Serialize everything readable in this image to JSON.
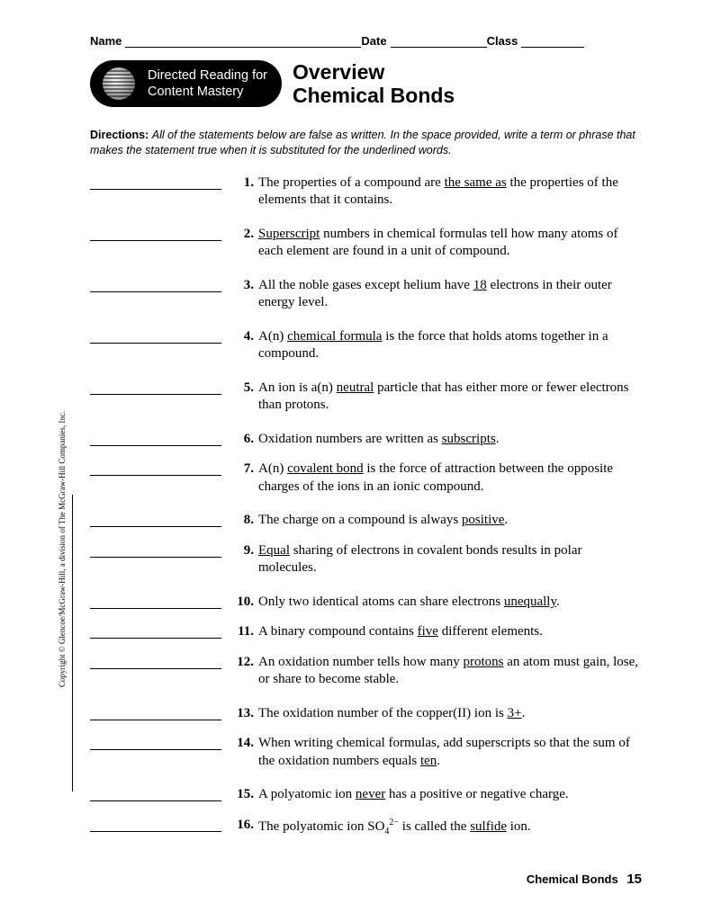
{
  "header": {
    "name_label": "Name",
    "date_label": "Date",
    "class_label": "Class",
    "name_width": 262,
    "date_width": 107,
    "class_width": 70
  },
  "badge": {
    "line1": "Directed Reading for",
    "line2": "Content Mastery"
  },
  "title": {
    "line1": "Overview",
    "line2": "Chemical Bonds"
  },
  "directions": {
    "lead": "Directions:",
    "body": "All of the statements below are false as written. In the space provided, write a term or phrase that makes the statement true when it is substituted for the underlined words."
  },
  "questions": [
    {
      "num": "1.",
      "parts": [
        "The properties of a compound are ",
        {
          "u": "the same as"
        },
        " the properties of the elements that it contains."
      ]
    },
    {
      "num": "2.",
      "parts": [
        {
          "u": "Superscript"
        },
        " numbers in chemical formulas tell how many atoms of each element are found in a unit of compound."
      ]
    },
    {
      "num": "3.",
      "parts": [
        "All the noble gases except helium have ",
        {
          "u": "18"
        },
        " electrons in their outer energy level."
      ]
    },
    {
      "num": "4.",
      "parts": [
        "A(n) ",
        {
          "u": "chemical formula"
        },
        " is the force that holds atoms together in a compound."
      ]
    },
    {
      "num": "5.",
      "parts": [
        "An ion is a(n) ",
        {
          "u": "neutral"
        },
        " particle that has either more or fewer electrons than protons."
      ]
    },
    {
      "num": "6.",
      "parts": [
        "Oxidation numbers are written as ",
        {
          "u": "subscripts"
        },
        "."
      ],
      "single": true
    },
    {
      "num": "7.",
      "parts": [
        "A(n) ",
        {
          "u": "covalent bond"
        },
        " is the force of attraction between the opposite charges of the ions in an ionic compound."
      ]
    },
    {
      "num": "8.",
      "parts": [
        "The charge on a compound is always ",
        {
          "u": "positive"
        },
        "."
      ],
      "single": true
    },
    {
      "num": "9.",
      "parts": [
        {
          "u": "Equal"
        },
        " sharing of electrons in covalent bonds results in polar molecules."
      ]
    },
    {
      "num": "10.",
      "parts": [
        "Only two identical atoms can share electrons ",
        {
          "u": "unequally"
        },
        "."
      ],
      "single": true
    },
    {
      "num": "11.",
      "parts": [
        "A binary compound contains ",
        {
          "u": "five"
        },
        " different elements."
      ],
      "single": true
    },
    {
      "num": "12.",
      "parts": [
        "An oxidation number tells how many ",
        {
          "u": "protons"
        },
        " an atom must gain, lose, or share to become stable."
      ]
    },
    {
      "num": "13.",
      "parts": [
        "The oxidation number of the copper(II) ion is ",
        {
          "u": "3+"
        },
        "."
      ],
      "single": true
    },
    {
      "num": "14.",
      "parts": [
        "When writing chemical formulas, add superscripts so that the sum of the oxidation numbers equals ",
        {
          "u": "ten"
        },
        "."
      ]
    },
    {
      "num": "15.",
      "parts": [
        "A polyatomic ion ",
        {
          "u": "never"
        },
        " has a positive or negative charge."
      ],
      "single": true
    },
    {
      "num": "16.",
      "parts": [
        "The polyatomic ion SO",
        {
          "sub": "4"
        },
        {
          "sup": "2−"
        },
        " is called the ",
        {
          "u": "sulfide"
        },
        " ion."
      ],
      "single": true
    }
  ],
  "copyright": "Copyright © Glencoe/McGraw-Hill, a division of The McGraw-Hill Companies, Inc.",
  "footer": {
    "title": "Chemical Bonds",
    "page": "15"
  }
}
